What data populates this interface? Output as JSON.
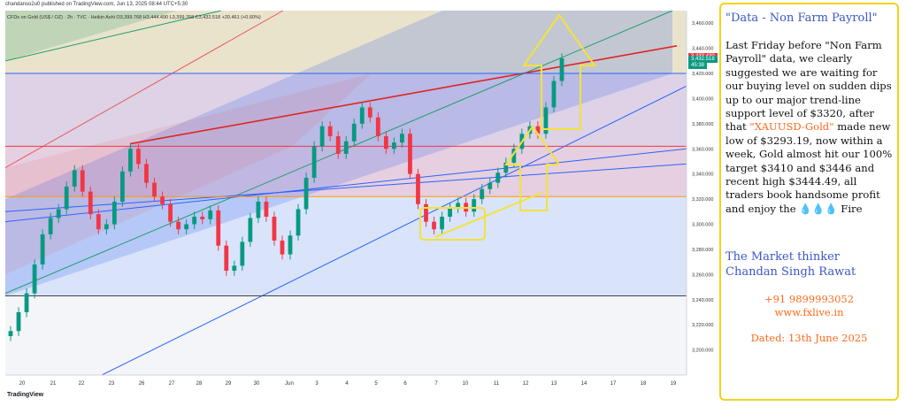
{
  "header": {
    "published": "chandanso2u0 published on TradingView.com, Jun 13, 2025 08:44 UTC+5:30",
    "symbol_line": "CFDs on Gold (US$ / OZ) · 2h · TVC · Heikin Ashi  O3,399.768 H3,444.490 L3,399.768 C3,432.518 +20.461 (+0.60%)",
    "footer_logo": "TradingView"
  },
  "chart_data": {
    "type": "candlestick",
    "instrument": "CFDs on Gold (US$ / OZ)",
    "timeframe": "2h",
    "style": "Heikin Ashi",
    "ohlc": {
      "open": 3399.768,
      "high": 3444.49,
      "low": 3399.768,
      "close": 3432.518,
      "change": "+20.461 (+0.60%)"
    },
    "ylim": [
      3180,
      3470
    ],
    "y_ticks": [
      3200,
      3220,
      3240,
      3260,
      3280,
      3300,
      3320,
      3340,
      3360,
      3380,
      3400,
      3420,
      3440,
      3460
    ],
    "y_tick_labels": [
      "3,200.000",
      "3,220.000",
      "3,240.000",
      "3,260.000",
      "3,280.000",
      "3,300.000",
      "3,320.000",
      "3,340.000",
      "3,360.000",
      "3,380.000",
      "3,400.000",
      "3,420.000",
      "3,440.000",
      "3,460.000"
    ],
    "x_tick_labels": [
      "20",
      "21",
      "22",
      "23",
      "26",
      "27",
      "28",
      "29",
      "30",
      "Jun",
      "3",
      "4",
      "5",
      "6",
      "7",
      "10",
      "11",
      "12",
      "13",
      "14",
      "17",
      "18",
      "19"
    ],
    "price_tags": [
      {
        "label": "3,433.430",
        "value": 3433.43,
        "color": "#f23645"
      },
      {
        "label": "3,432.518",
        "value": 3432.518,
        "color": "#089981"
      },
      {
        "label": "45:38",
        "value": 3428.5,
        "color": "#089981"
      }
    ],
    "horizontal_levels": [
      {
        "value": 3420,
        "color": "#2962ff"
      },
      {
        "value": 3362,
        "color": "#f23645"
      },
      {
        "value": 3322,
        "color": "#ff9800"
      },
      {
        "value": 3243,
        "color": "#444444"
      }
    ],
    "bullish_color": "#089981",
    "bearish_color": "#f23645",
    "candles_mid": [
      3215,
      3230,
      3245,
      3268,
      3292,
      3305,
      3312,
      3330,
      3343,
      3326,
      3308,
      3296,
      3300,
      3318,
      3342,
      3360,
      3348,
      3333,
      3322,
      3316,
      3302,
      3296,
      3300,
      3306,
      3304,
      3311,
      3283,
      3263,
      3267,
      3286,
      3305,
      3318,
      3306,
      3287,
      3276,
      3291,
      3312,
      3337,
      3362,
      3378,
      3370,
      3356,
      3366,
      3380,
      3393,
      3385,
      3370,
      3360,
      3365,
      3372,
      3340,
      3316,
      3302,
      3296,
      3306,
      3313,
      3317,
      3310,
      3320,
      3328,
      3333,
      3341,
      3349,
      3360,
      3372,
      3378,
      3372,
      3393,
      3414,
      3432
    ]
  },
  "panel": {
    "title": "\"Data - Non Farm Payroll\"",
    "body_1": "Last Friday before \"Non Farm Payroll\" data, we clearly suggested we are waiting for our buying level on sudden dips up to our major trend-line support level of $3320, after that ",
    "body_highlight": "\"XAUUSD-Gold\"",
    "body_2": " made new low of $3293.19, now within a week, Gold almost hit our 100% target $3410 and $3446 and recent high $3444.49, all traders book handsome profit and enjoy the ",
    "body_emoji": "💧💧💧",
    "body_3": " Fire",
    "signature_1": "The Market thinker",
    "signature_2": "Chandan Singh Rawat",
    "phone": "+91 9899993052",
    "website": "www.fxlive.in",
    "date": "Dated: 13th June 2025"
  }
}
